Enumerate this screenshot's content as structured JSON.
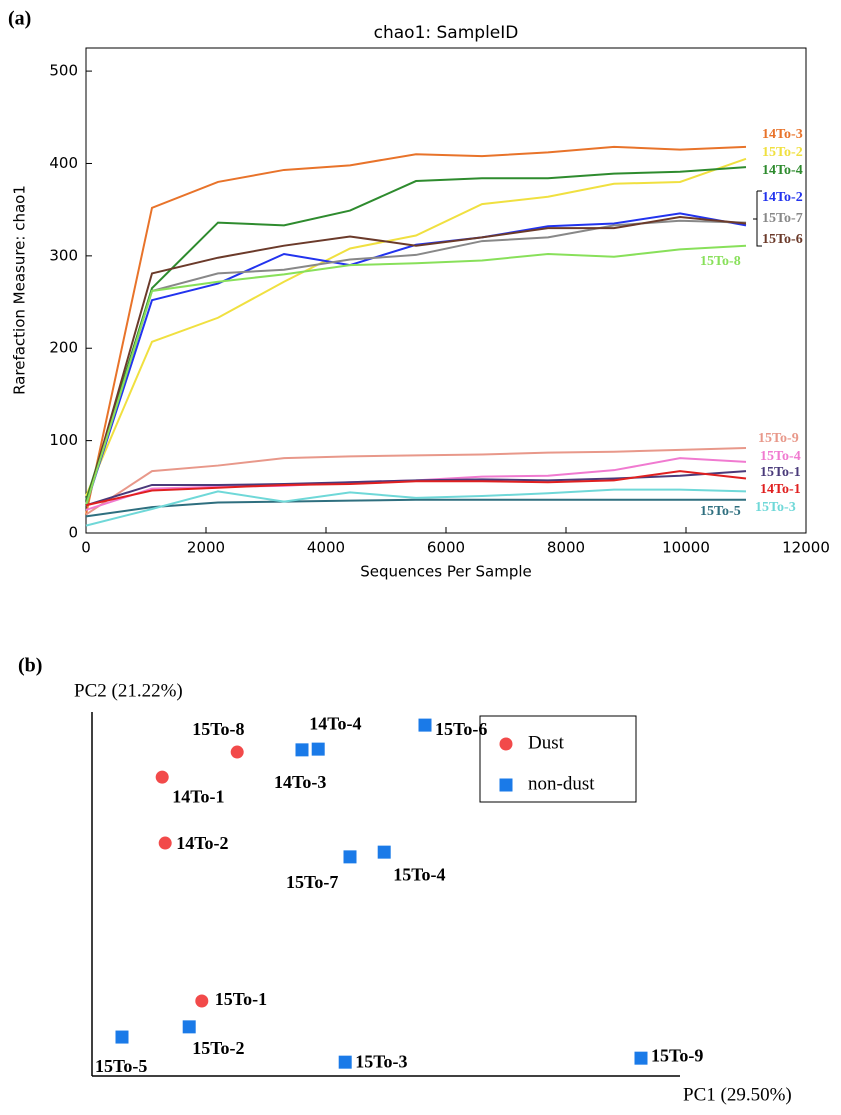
{
  "chart_data": [
    {
      "type": "line",
      "panel_label": "(a)",
      "title": "chao1: SampleID",
      "x_label": "Sequences Per Sample",
      "y_label": "Rarefaction Measure: chao1",
      "xlim": [
        0,
        12000
      ],
      "xticks": [
        0,
        2000,
        4000,
        6000,
        8000,
        10000,
        12000
      ],
      "ylim": [
        0,
        525
      ],
      "yticks": [
        0,
        100,
        200,
        300,
        400,
        500
      ],
      "x": [
        0,
        1100,
        2200,
        3300,
        4400,
        5500,
        6600,
        7700,
        8800,
        9900,
        11000
      ],
      "series": [
        {
          "name": "14To-3",
          "color": "#e8732a",
          "values": [
            20,
            352,
            380,
            393,
            398,
            410,
            408,
            412,
            418,
            415,
            418
          ]
        },
        {
          "name": "15To-2",
          "color": "#f0e040",
          "values": [
            40,
            207,
            233,
            272,
            308,
            322,
            356,
            364,
            378,
            380,
            405
          ]
        },
        {
          "name": "14To-4",
          "color": "#2e8b2e",
          "values": [
            35,
            265,
            336,
            333,
            349,
            381,
            384,
            384,
            389,
            391,
            396
          ]
        },
        {
          "name": "14To-2",
          "color": "#2233ee",
          "values": [
            30,
            252,
            270,
            302,
            290,
            312,
            320,
            332,
            335,
            346,
            333
          ]
        },
        {
          "name": "15To-7",
          "color": "#888888",
          "values": [
            30,
            262,
            281,
            285,
            296,
            301,
            316,
            320,
            333,
            338,
            336
          ]
        },
        {
          "name": "15To-6",
          "color": "#6b3a2a",
          "values": [
            30,
            281,
            298,
            311,
            321,
            311,
            320,
            330,
            330,
            342,
            335
          ]
        },
        {
          "name": "15To-8",
          "color": "#88e05a",
          "values": [
            30,
            262,
            272,
            280,
            290,
            292,
            295,
            302,
            299,
            307,
            311
          ]
        },
        {
          "name": "15To-9",
          "color": "#e8988a",
          "values": [
            20,
            67,
            73,
            81,
            83,
            84,
            85,
            87,
            88,
            90,
            92
          ]
        },
        {
          "name": "15To-4",
          "color": "#f07ad0",
          "values": [
            25,
            48,
            50,
            51,
            55,
            57,
            61,
            62,
            68,
            81,
            77
          ]
        },
        {
          "name": "15To-1",
          "color": "#4a3a7a",
          "values": [
            30,
            52,
            52,
            53,
            55,
            57,
            58,
            57,
            59,
            62,
            67
          ]
        },
        {
          "name": "14To-1",
          "color": "#e02020",
          "values": [
            30,
            46,
            49,
            52,
            53,
            56,
            56,
            55,
            57,
            67,
            59
          ]
        },
        {
          "name": "15To-5",
          "color": "#2f6f7f",
          "values": [
            18,
            28,
            33,
            34,
            35,
            36,
            36,
            36,
            36,
            36,
            36
          ]
        },
        {
          "name": "15To-3",
          "color": "#6fd8d8",
          "values": [
            8,
            26,
            45,
            34,
            44,
            38,
            40,
            43,
            47,
            47,
            45
          ]
        }
      ]
    },
    {
      "type": "scatter",
      "panel_label": "(b)",
      "x_label": "PC1 (29.50%)",
      "y_label": "PC2 (21.22%)",
      "xlim": [
        0,
        98
      ],
      "ylim": [
        0,
        100
      ],
      "legend": "upper right",
      "series": [
        {
          "name": "Dust",
          "color": "#f24a4a",
          "marker": "circle",
          "labels": [
            "15To-8",
            "14To-1",
            "14To-2",
            "15To-1"
          ],
          "x": [
            24.2,
            11.7,
            12.2,
            18.3
          ],
          "values": [
            89,
            82.1,
            64,
            20.6
          ]
        },
        {
          "name": "non-dust",
          "color": "#1a7ae8",
          "marker": "square",
          "labels": [
            "14To-4",
            "14To-3",
            "15To-6",
            "15To-7",
            "15To-4",
            "15To-5",
            "15To-2",
            "15To-3",
            "15To-9"
          ],
          "x": [
            37.7,
            35,
            55.5,
            43,
            48.7,
            5,
            16.2,
            42.2,
            91.5
          ],
          "values": [
            89.8,
            89.6,
            96.4,
            60.2,
            61.5,
            10.7,
            13.5,
            3.8,
            4.9
          ]
        }
      ]
    }
  ]
}
